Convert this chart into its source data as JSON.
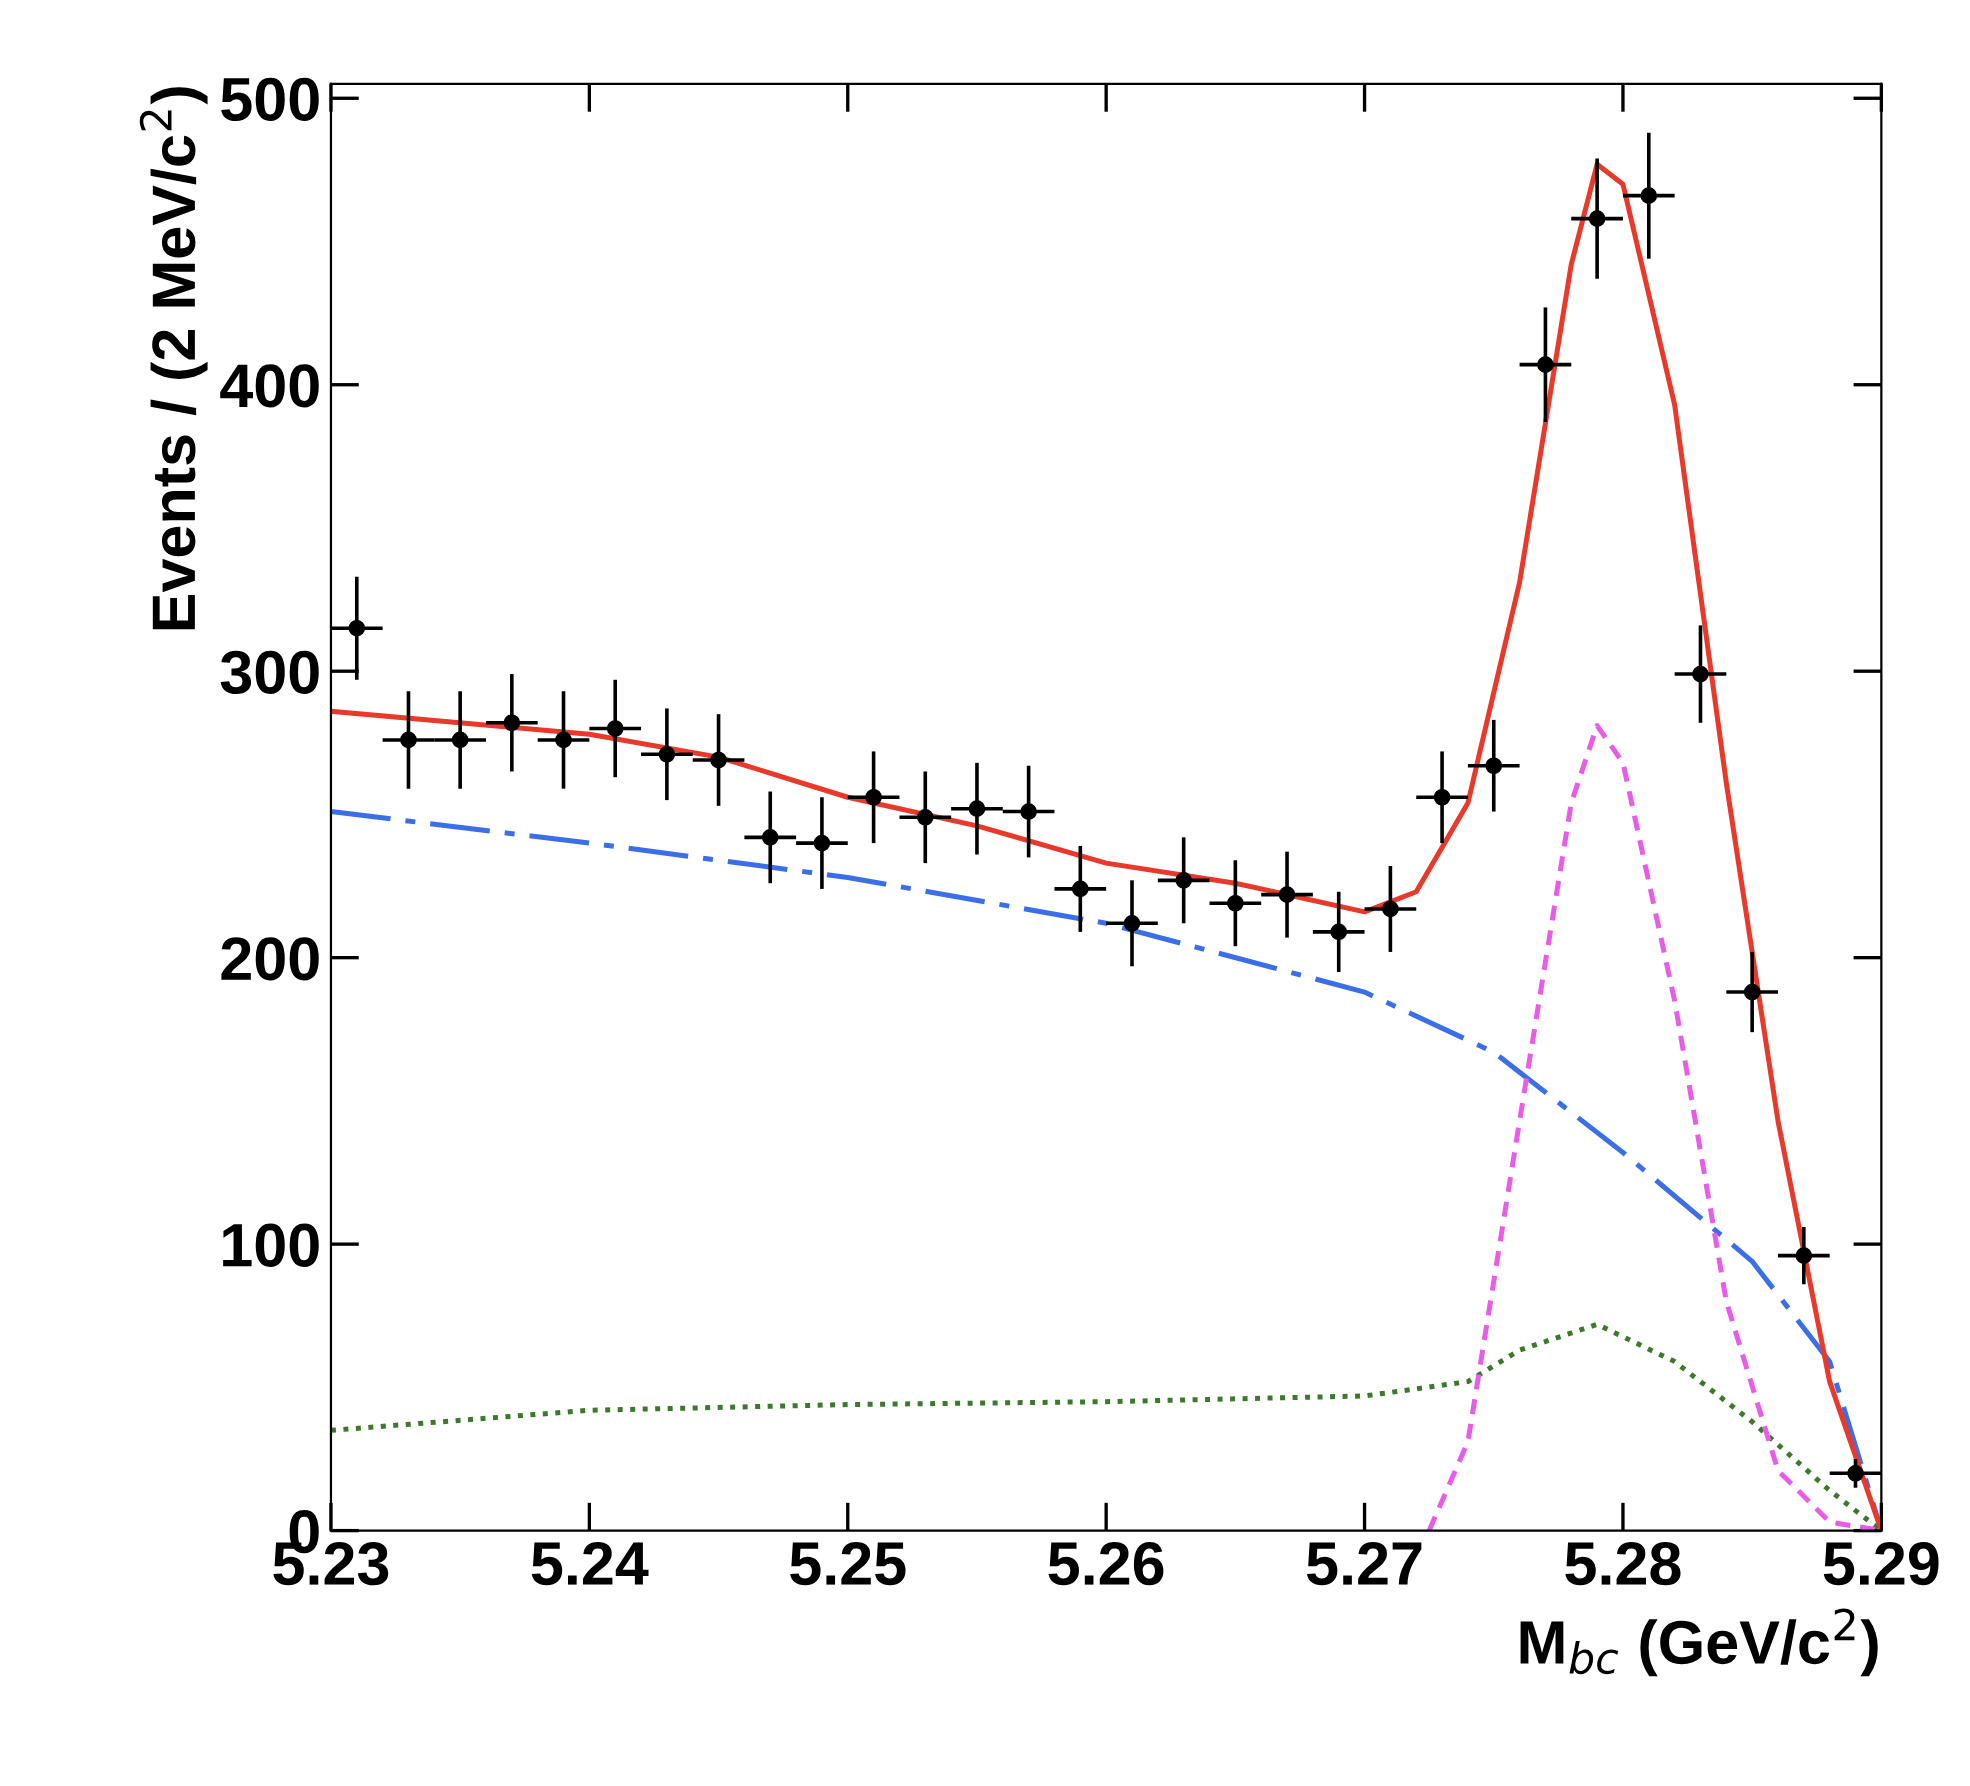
{
  "chart_data": {
    "type": "scatter",
    "xlabel": "M$_{bc}$ (GeV/c$^{2}$)",
    "ylabel": "Events / (2 MeV/c$^{2}$)",
    "xlim": [
      5.23,
      5.29
    ],
    "ylim": [
      0,
      505
    ],
    "xticks": [
      5.23,
      5.24,
      5.25,
      5.26,
      5.27,
      5.28,
      5.29
    ],
    "yticks": [
      0,
      100,
      200,
      300,
      400,
      500
    ],
    "grid": false,
    "series": [
      {
        "type": "line",
        "color": "#3a6fe8",
        "line_style": "dashdot",
        "x": [
          5.23,
          5.24,
          5.25,
          5.26,
          5.27,
          5.275,
          5.28,
          5.285,
          5.288,
          5.29
        ],
        "values": [
          251,
          240,
          228,
          212,
          188,
          167,
          132,
          94,
          59,
          0
        ]
      },
      {
        "type": "line",
        "color": "#3b7a2a",
        "line_style": "dotted",
        "x": [
          5.23,
          5.24,
          5.25,
          5.26,
          5.27,
          5.274,
          5.276,
          5.279,
          5.282,
          5.285,
          5.288,
          5.29
        ],
        "values": [
          35,
          42,
          44,
          45,
          47,
          52,
          63,
          72,
          59,
          38,
          14,
          0
        ]
      },
      {
        "type": "line",
        "color": "#e85ce8",
        "line_style": "dashed",
        "x": [
          5.2725,
          5.274,
          5.276,
          5.278,
          5.279,
          5.28,
          5.282,
          5.284,
          5.286,
          5.288,
          5.29
        ],
        "values": [
          0,
          31,
          143,
          254,
          281,
          268,
          185,
          80,
          21,
          3,
          0
        ]
      },
      {
        "type": "line",
        "color": "#e8392b",
        "line_style": "solid",
        "x": [
          5.23,
          5.24,
          5.245,
          5.25,
          5.255,
          5.26,
          5.265,
          5.27,
          5.272,
          5.274,
          5.276,
          5.278,
          5.279,
          5.28,
          5.282,
          5.284,
          5.286,
          5.288,
          5.29
        ],
        "values": [
          286,
          278,
          270,
          256,
          246,
          233,
          226,
          216,
          223,
          254,
          331,
          442,
          477,
          470,
          393,
          261,
          143,
          52,
          0
        ]
      },
      {
        "color": "#000000",
        "marker": "circle",
        "x": [
          5.231,
          5.233,
          5.235,
          5.237,
          5.239,
          5.241,
          5.243,
          5.245,
          5.247,
          5.249,
          5.251,
          5.253,
          5.255,
          5.257,
          5.259,
          5.261,
          5.263,
          5.265,
          5.267,
          5.269,
          5.271,
          5.273,
          5.275,
          5.277,
          5.279,
          5.281,
          5.283,
          5.285,
          5.287,
          5.289
        ],
        "values": [
          315,
          276,
          276,
          282,
          276,
          280,
          271,
          269,
          242,
          240,
          256,
          249,
          252,
          251,
          224,
          212,
          227,
          219,
          222,
          209,
          217,
          256,
          267,
          407,
          458,
          466,
          299,
          188,
          96,
          20
        ],
        "errors": [
          18,
          17,
          17,
          17,
          17,
          17,
          16,
          16,
          16,
          16,
          16,
          16,
          16,
          16,
          15,
          15,
          15,
          15,
          15,
          14,
          15,
          16,
          16,
          20,
          21,
          22,
          17,
          14,
          10,
          5
        ],
        "xerrors": [
          0.001,
          0.001,
          0.001,
          0.001,
          0.001,
          0.001,
          0.001,
          0.001,
          0.001,
          0.001,
          0.001,
          0.001,
          0.001,
          0.001,
          0.001,
          0.001,
          0.001,
          0.001,
          0.001,
          0.001,
          0.001,
          0.001,
          0.001,
          0.001,
          0.001,
          0.001,
          0.001,
          0.001,
          0.001,
          0.001
        ]
      }
    ]
  }
}
